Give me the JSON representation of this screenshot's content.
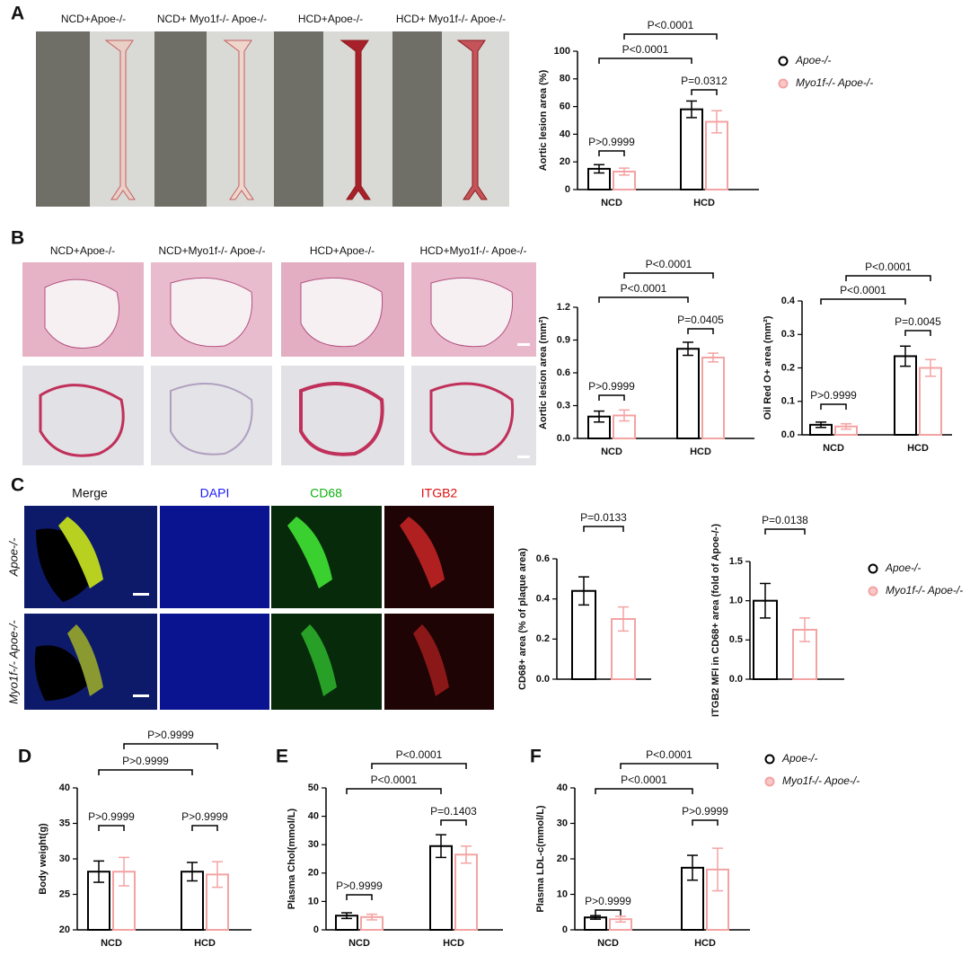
{
  "figure": {
    "panel_labels": [
      "A",
      "B",
      "C",
      "D",
      "E",
      "F"
    ],
    "a_images": [
      "NCD+Apoe-/-",
      "NCD+ Myo1f-/- Apoe-/-",
      "HCD+Apoe-/-",
      "HCD+ Myo1f-/- Apoe-/-"
    ],
    "b_images": [
      "NCD+Apoe-/-",
      "NCD+Myo1f-/- Apoe-/-",
      "HCD+Apoe-/-",
      "HCD+Myo1f-/- Apoe-/-"
    ],
    "c_channels": [
      "Merge",
      "DAPI",
      "CD68",
      "ITGB2"
    ],
    "c_rows": [
      "Apoe-/-",
      "Myo1f-/- Apoe-/-"
    ]
  },
  "chart_data": [
    {
      "type": "bar",
      "ylabel": "Aortic lesion area (%)",
      "categories": [
        "NCD",
        "HCD"
      ],
      "series": [
        {
          "name": "Apoe-/-",
          "color": "#000000",
          "values": [
            15,
            58
          ],
          "errors": [
            3,
            6
          ]
        },
        {
          "name": "Myo1f-/- Apoe-/-",
          "color": "#f4a3a3",
          "values": [
            13,
            49
          ],
          "errors": [
            2.5,
            8
          ]
        }
      ],
      "ylim": [
        0,
        100
      ],
      "yticks": [
        0,
        20,
        40,
        60,
        80,
        100
      ],
      "annotations": [
        "P<0.0001",
        "P<0.0001",
        "P=0.0312",
        "P>0.9999"
      ],
      "legend": true
    },
    {
      "type": "bar",
      "ylabel": "Aortic lesion area (mm²)",
      "categories": [
        "NCD",
        "HCD"
      ],
      "series": [
        {
          "name": "Apoe-/-",
          "color": "#000000",
          "values": [
            0.2,
            0.82
          ],
          "errors": [
            0.05,
            0.06
          ]
        },
        {
          "name": "Myo1f-/- Apoe-/-",
          "color": "#f4a3a3",
          "values": [
            0.21,
            0.74
          ],
          "errors": [
            0.05,
            0.04
          ]
        }
      ],
      "ylim": [
        0,
        1.2
      ],
      "yticks": [
        {
          "value": 0,
          "label": "0.0"
        },
        0.3,
        0.6,
        0.9,
        1.2
      ],
      "annotations": [
        "P<0.0001",
        "P<0.0001",
        "P=0.0405",
        "P>0.9999"
      ],
      "legend": false
    },
    {
      "type": "bar",
      "ylabel": "Oil Red O+ area (mm²)",
      "categories": [
        "NCD",
        "HCD"
      ],
      "series": [
        {
          "name": "Apoe-/-",
          "color": "#000000",
          "values": [
            0.03,
            0.235
          ],
          "errors": [
            0.008,
            0.03
          ]
        },
        {
          "name": "Myo1f-/- Apoe-/-",
          "color": "#f4a3a3",
          "values": [
            0.025,
            0.2
          ],
          "errors": [
            0.008,
            0.025
          ]
        }
      ],
      "ylim": [
        0,
        0.4
      ],
      "yticks": [
        {
          "value": 0,
          "label": "0.0"
        },
        0.1,
        0.2,
        0.3,
        0.4
      ],
      "annotations": [
        "P<0.0001",
        "P<0.0001",
        "P=0.0045",
        "P>0.9999"
      ],
      "legend": false
    },
    {
      "type": "bar",
      "ylabel": "CD68+ area (% of plaque area)",
      "categories": [
        null
      ],
      "series": [
        {
          "name": "Apoe-/-",
          "color": "#000000",
          "values": [
            0.44
          ],
          "errors": [
            0.07
          ]
        },
        {
          "name": "Myo1f-/- Apoe-/-",
          "color": "#f4a3a3",
          "values": [
            0.3
          ],
          "errors": [
            0.06
          ]
        }
      ],
      "ylim": [
        0,
        0.6
      ],
      "yticks": [
        {
          "value": 0,
          "label": "0.0"
        },
        0.2,
        0.4,
        0.6
      ],
      "annotations": [
        "P=0.0133"
      ],
      "legend": false
    },
    {
      "type": "bar",
      "ylabel": "ITGB2 MFI in CD68+ area (fold of Apoe-/-)",
      "categories": [
        null
      ],
      "series": [
        {
          "name": "Apoe-/-",
          "color": "#000000",
          "values": [
            1.0
          ],
          "errors": [
            0.22
          ]
        },
        {
          "name": "Myo1f-/- Apoe-/-",
          "color": "#f4a3a3",
          "values": [
            0.63
          ],
          "errors": [
            0.15
          ]
        }
      ],
      "ylim": [
        0,
        1.5
      ],
      "yticks": [
        {
          "value": 0,
          "label": "0.0"
        },
        0.5,
        {
          "value": 1,
          "label": "1.0"
        },
        1.5
      ],
      "annotations": [
        "P=0.0138"
      ],
      "legend": true
    },
    {
      "type": "bar",
      "ylabel": "Body weight(g)",
      "categories": [
        "NCD",
        "HCD"
      ],
      "series": [
        {
          "name": "Apoe-/-",
          "color": "#000000",
          "values": [
            28.2,
            28.2
          ],
          "errors": [
            1.5,
            1.3
          ]
        },
        {
          "name": "Myo1f-/- Apoe-/-",
          "color": "#f4a3a3",
          "values": [
            28.2,
            27.8
          ],
          "errors": [
            2,
            1.8
          ]
        }
      ],
      "ylim": [
        20,
        40
      ],
      "yticks": [
        20,
        25,
        30,
        35,
        40
      ],
      "annotations": [
        "P>0.9999",
        "P>0.9999",
        "P>0.9999",
        "P>0.9999"
      ],
      "legend": false
    },
    {
      "type": "bar",
      "ylabel": "Plasma Chol(mmol/L)",
      "categories": [
        "NCD",
        "HCD"
      ],
      "series": [
        {
          "name": "Apoe-/-",
          "color": "#000000",
          "values": [
            5,
            29.5
          ],
          "errors": [
            1,
            4
          ]
        },
        {
          "name": "Myo1f-/- Apoe-/-",
          "color": "#f4a3a3",
          "values": [
            4.5,
            26.5
          ],
          "errors": [
            1,
            3
          ]
        }
      ],
      "ylim": [
        0,
        50
      ],
      "yticks": [
        0,
        10,
        20,
        30,
        40,
        50
      ],
      "annotations": [
        "P<0.0001",
        "P<0.0001",
        "P=0.1403",
        "P>0.9999"
      ],
      "legend": false
    },
    {
      "type": "bar",
      "ylabel": "Plasma LDL-c(mmol/L)",
      "categories": [
        "NCD",
        "HCD"
      ],
      "series": [
        {
          "name": "Apoe-/-",
          "color": "#000000",
          "values": [
            3.5,
            17.5
          ],
          "errors": [
            0.5,
            3.5
          ]
        },
        {
          "name": "Myo1f-/- Apoe-/-",
          "color": "#f4a3a3",
          "values": [
            3,
            17
          ],
          "errors": [
            0.8,
            6
          ]
        }
      ],
      "ylim": [
        0,
        40
      ],
      "yticks": [
        0,
        10,
        20,
        30,
        40
      ],
      "annotations": [
        "P<0.0001",
        "P<0.0001",
        "P>0.9999",
        "P>0.9999"
      ],
      "legend": true
    }
  ]
}
